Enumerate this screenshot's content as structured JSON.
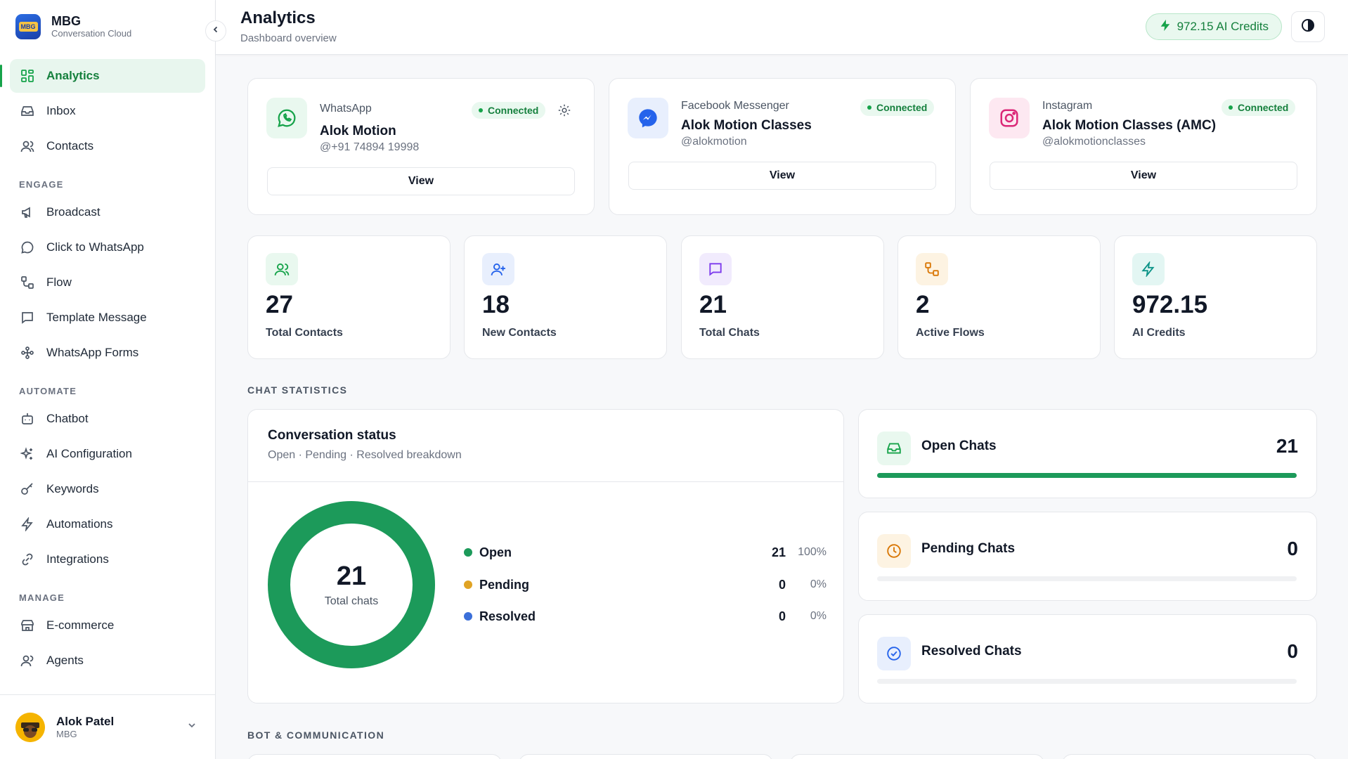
{
  "brand": {
    "name": "MBG",
    "subtitle": "Conversation Cloud",
    "logo_text": "MBG"
  },
  "sidebar": {
    "items": [
      {
        "label": "Analytics",
        "icon": "grid-icon",
        "active": true
      },
      {
        "label": "Inbox",
        "icon": "inbox-icon"
      },
      {
        "label": "Contacts",
        "icon": "users-icon"
      }
    ],
    "sections": [
      {
        "title": "ENGAGE",
        "items": [
          {
            "label": "Broadcast",
            "icon": "megaphone-icon"
          },
          {
            "label": "Click to WhatsApp",
            "icon": "chat-bubble-icon"
          },
          {
            "label": "Flow",
            "icon": "flow-icon"
          },
          {
            "label": "Template Message",
            "icon": "message-square-icon"
          },
          {
            "label": "WhatsApp Forms",
            "icon": "forms-icon"
          }
        ]
      },
      {
        "title": "AUTOMATE",
        "items": [
          {
            "label": "Chatbot",
            "icon": "bot-icon"
          },
          {
            "label": "AI Configuration",
            "icon": "sparkles-icon"
          },
          {
            "label": "Keywords",
            "icon": "key-icon"
          },
          {
            "label": "Automations",
            "icon": "zap-icon"
          },
          {
            "label": "Integrations",
            "icon": "link-icon"
          }
        ]
      },
      {
        "title": "MANAGE",
        "items": [
          {
            "label": "E-commerce",
            "icon": "store-icon"
          },
          {
            "label": "Agents",
            "icon": "agents-icon"
          }
        ]
      }
    ],
    "user": {
      "name": "Alok Patel",
      "org": "MBG"
    }
  },
  "header": {
    "title": "Analytics",
    "subtitle": "Dashboard overview",
    "credits_label": "972.15 AI Credits"
  },
  "channels": [
    {
      "type": "WhatsApp",
      "name": "Alok Motion",
      "handle": "@+91 74894 19998",
      "status": "Connected",
      "button": "View",
      "color": "#16a34a"
    },
    {
      "type": "Facebook Messenger",
      "name": "Alok Motion Classes",
      "handle": "@alokmotion",
      "status": "Connected",
      "button": "View",
      "color": "#2563eb"
    },
    {
      "type": "Instagram",
      "name": "Alok Motion Classes (AMC)",
      "handle": "@alokmotionclasses",
      "status": "Connected",
      "button": "View",
      "color": "#db2777"
    }
  ],
  "stats": [
    {
      "value": "27",
      "label": "Total Contacts",
      "color": "#16a34a"
    },
    {
      "value": "18",
      "label": "New Contacts",
      "color": "#2563eb"
    },
    {
      "value": "21",
      "label": "Total Chats",
      "color": "#7c3aed"
    },
    {
      "value": "2",
      "label": "Active Flows",
      "color": "#d97706"
    },
    {
      "value": "972.15",
      "label": "AI Credits",
      "color": "#0d9488"
    }
  ],
  "chat_statistics": {
    "section_title": "CHAT STATISTICS",
    "conversation": {
      "title": "Conversation status",
      "subtitle": "Open · Pending · Resolved breakdown",
      "total": "21",
      "total_label": "Total chats",
      "breakdown": [
        {
          "name": "Open",
          "count": "21",
          "pct": "100%",
          "color": "#1c9a5a"
        },
        {
          "name": "Pending",
          "count": "0",
          "pct": "0%",
          "color": "#e0a324"
        },
        {
          "name": "Resolved",
          "count": "0",
          "pct": "0%",
          "color": "#3b6fd9"
        }
      ]
    },
    "status_cards": [
      {
        "label": "Open Chats",
        "value": "21",
        "fill": 1.0,
        "icon": "inbox-icon"
      },
      {
        "label": "Pending Chats",
        "value": "0",
        "fill": 0.0,
        "icon": "clock-icon"
      },
      {
        "label": "Resolved Chats",
        "value": "0",
        "fill": 0.0,
        "icon": "check-circle-icon"
      }
    ]
  },
  "bot_section_title": "BOT & COMMUNICATION",
  "colors": {
    "accent": "#16a34a",
    "active_bg": "#e8f6ee"
  }
}
